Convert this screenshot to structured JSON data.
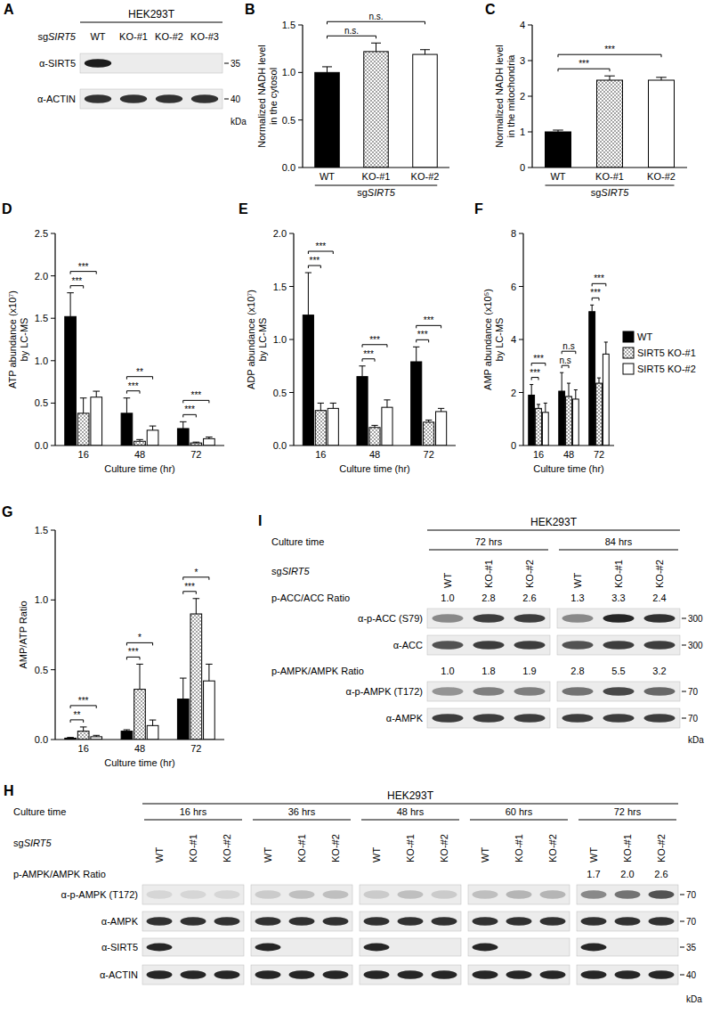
{
  "chart_data": [
    {
      "panel": "B",
      "type": "bar",
      "categories": [
        "WT",
        "KO-#1",
        "KO-#2"
      ],
      "values": [
        1.0,
        1.22,
        1.19
      ],
      "errors": [
        0.06,
        0.09,
        0.05
      ],
      "colors": [
        "#000000",
        "#ffffff",
        "#ffffff"
      ],
      "ylim": [
        0,
        1.5
      ],
      "yticks": [
        {
          "value": 0,
          "label": "0.0"
        },
        {
          "value": 0.5,
          "label": "0.5"
        },
        {
          "value": 1,
          "label": "1.0"
        },
        {
          "value": 1.5,
          "label": "1.5"
        }
      ],
      "ylabel": [
        "Normalized NADH level",
        "in the cytosol"
      ],
      "xlabel": "sgSIRT5",
      "annotations": [
        {
          "text": "n.s.",
          "pair": [
            0,
            1
          ]
        },
        {
          "text": "n.s.",
          "pair": [
            0,
            2
          ]
        }
      ]
    },
    {
      "panel": "C",
      "type": "bar",
      "categories": [
        "WT",
        "KO-#1",
        "KO-#2"
      ],
      "values": [
        1.0,
        2.45,
        2.45
      ],
      "errors": [
        0.05,
        0.12,
        0.08
      ],
      "colors": [
        "#000000",
        "#ffffff",
        "#ffffff"
      ],
      "ylim": [
        0,
        4
      ],
      "yticks": [
        0,
        1,
        2,
        3,
        4
      ],
      "ylabel": [
        "Normalized NADH level",
        "in the mitochondria"
      ],
      "xlabel": "sgSIRT5",
      "annotations": [
        {
          "text": "***",
          "pair": [
            0,
            1
          ]
        },
        {
          "text": "***",
          "pair": [
            0,
            2
          ]
        }
      ]
    },
    {
      "panel": "D",
      "type": "bar",
      "categories": [
        "16",
        "48",
        "72"
      ],
      "series": [
        {
          "name": "WT",
          "color": "#000000",
          "values": [
            1.52,
            0.38,
            0.2
          ],
          "errors": [
            0.28,
            0.18,
            0.08
          ]
        },
        {
          "name": "SIRT5 KO-#1",
          "color": "#ffffff",
          "values": [
            0.38,
            0.05,
            0.03
          ],
          "errors": [
            0.18,
            0.02,
            0.01
          ]
        },
        {
          "name": "SIRT5 KO-#2",
          "color": "#ffffff",
          "values": [
            0.57,
            0.18,
            0.08
          ],
          "errors": [
            0.07,
            0.05,
            0.02
          ]
        }
      ],
      "ylim": [
        0,
        2.5
      ],
      "yticks": [
        {
          "value": 0,
          "label": "0.0"
        },
        {
          "value": 0.5,
          "label": "0.5"
        },
        {
          "value": 1,
          "label": "1.0"
        },
        {
          "value": 1.5,
          "label": "1.5"
        },
        {
          "value": 2,
          "label": "2.0"
        },
        {
          "value": 2.5,
          "label": "2.5"
        }
      ],
      "ylabel": [
        "ATP abundance (x10⁷)",
        "by LC-MS"
      ],
      "xlabel": "Culture time (hr)",
      "annotations": [
        {
          "text": "***",
          "category": 0,
          "pair": [
            0,
            1
          ]
        },
        {
          "text": "***",
          "category": 0,
          "pair": [
            0,
            2
          ]
        },
        {
          "text": "***",
          "category": 1,
          "pair": [
            0,
            1
          ]
        },
        {
          "text": "**",
          "category": 1,
          "pair": [
            0,
            2
          ]
        },
        {
          "text": "***",
          "category": 2,
          "pair": [
            0,
            1
          ]
        },
        {
          "text": "***",
          "category": 2,
          "pair": [
            0,
            2
          ]
        }
      ]
    },
    {
      "panel": "E",
      "type": "bar",
      "categories": [
        "16",
        "48",
        "72"
      ],
      "series": [
        {
          "name": "WT",
          "color": "#000000",
          "values": [
            1.23,
            0.65,
            0.79
          ],
          "errors": [
            0.4,
            0.1,
            0.14
          ]
        },
        {
          "name": "SIRT5 KO-#1",
          "color": "#ffffff",
          "values": [
            0.33,
            0.17,
            0.22
          ],
          "errors": [
            0.07,
            0.02,
            0.02
          ]
        },
        {
          "name": "SIRT5 KO-#2",
          "color": "#ffffff",
          "values": [
            0.35,
            0.36,
            0.32
          ],
          "errors": [
            0.05,
            0.07,
            0.03
          ]
        }
      ],
      "ylim": [
        0,
        2
      ],
      "yticks": [
        {
          "value": 0,
          "label": "0.0"
        },
        {
          "value": 0.5,
          "label": "0.5"
        },
        {
          "value": 1,
          "label": "1.0"
        },
        {
          "value": 1.5,
          "label": "1.5"
        },
        {
          "value": 2,
          "label": "2.0"
        }
      ],
      "ylabel": [
        "ADP abundance (x10⁷)",
        "by LC-MS"
      ],
      "xlabel": "Culture time (hr)",
      "annotations": [
        {
          "text": "***",
          "category": 0,
          "pair": [
            0,
            1
          ]
        },
        {
          "text": "***",
          "category": 0,
          "pair": [
            0,
            2
          ]
        },
        {
          "text": "***",
          "category": 1,
          "pair": [
            0,
            1
          ]
        },
        {
          "text": "***",
          "category": 1,
          "pair": [
            0,
            2
          ]
        },
        {
          "text": "***",
          "category": 2,
          "pair": [
            0,
            1
          ]
        },
        {
          "text": "***",
          "category": 2,
          "pair": [
            0,
            2
          ]
        }
      ]
    },
    {
      "panel": "F",
      "type": "bar",
      "categories": [
        "16",
        "48",
        "72"
      ],
      "series": [
        {
          "name": "WT",
          "color": "#000000",
          "values": [
            1.9,
            2.05,
            5.05
          ],
          "errors": [
            0.4,
            0.7,
            0.25
          ]
        },
        {
          "name": "SIRT5 KO-#1",
          "color": "#ffffff",
          "values": [
            1.4,
            1.85,
            2.35
          ],
          "errors": [
            0.15,
            0.5,
            0.2
          ]
        },
        {
          "name": "SIRT5 KO-#2",
          "color": "#ffffff",
          "values": [
            1.25,
            1.75,
            3.45
          ],
          "errors": [
            0.35,
            0.35,
            0.45
          ]
        }
      ],
      "ylim": [
        0,
        8
      ],
      "yticks": [
        0,
        2,
        4,
        6,
        8
      ],
      "ylabel": [
        "AMP abundance (x10⁵)",
        "by LC-MS"
      ],
      "xlabel": "Culture time (hr)",
      "legend": "right",
      "annotations": [
        {
          "text": "***",
          "category": 0,
          "pair": [
            0,
            1
          ]
        },
        {
          "text": "***",
          "category": 0,
          "pair": [
            0,
            2
          ]
        },
        {
          "text": "n.s",
          "category": 1,
          "pair": [
            0,
            1
          ]
        },
        {
          "text": "n.s",
          "category": 1,
          "pair": [
            0,
            2
          ]
        },
        {
          "text": "***",
          "category": 2,
          "pair": [
            0,
            1
          ]
        },
        {
          "text": "***",
          "category": 2,
          "pair": [
            0,
            2
          ]
        }
      ]
    },
    {
      "panel": "G",
      "type": "bar",
      "categories": [
        "16",
        "48",
        "72"
      ],
      "series": [
        {
          "name": "WT",
          "color": "#000000",
          "values": [
            0.01,
            0.06,
            0.29
          ],
          "errors": [
            0.005,
            0.01,
            0.15
          ]
        },
        {
          "name": "SIRT5 KO-#1",
          "color": "#ffffff",
          "values": [
            0.06,
            0.36,
            0.9
          ],
          "errors": [
            0.03,
            0.18,
            0.11
          ]
        },
        {
          "name": "SIRT5 KO-#2",
          "color": "#ffffff",
          "values": [
            0.02,
            0.1,
            0.42
          ],
          "errors": [
            0.01,
            0.04,
            0.12
          ]
        }
      ],
      "ylim": [
        0,
        1.5
      ],
      "yticks": [
        {
          "value": 0,
          "label": "0.0"
        },
        {
          "value": 0.5,
          "label": "0.5"
        },
        {
          "value": 1,
          "label": "1.0"
        },
        {
          "value": 1.5,
          "label": "1.5"
        }
      ],
      "ylabel": [
        "AMP/ATP Ratio"
      ],
      "xlabel": "Culture time (hr)",
      "annotations": [
        {
          "text": "**",
          "category": 0,
          "pair": [
            0,
            1
          ]
        },
        {
          "text": "***",
          "category": 0,
          "pair": [
            0,
            2
          ]
        },
        {
          "text": "***",
          "category": 1,
          "pair": [
            0,
            1
          ]
        },
        {
          "text": "*",
          "category": 1,
          "pair": [
            0,
            2
          ]
        },
        {
          "text": "***",
          "category": 2,
          "pair": [
            0,
            1
          ]
        },
        {
          "text": "*",
          "category": 2,
          "pair": [
            0,
            2
          ]
        }
      ]
    }
  ],
  "blots": [
    {
      "panel": "A",
      "cell_line": "HEK293T",
      "group_label": "sgSIRT5",
      "lanes": [
        "WT",
        "KO-#1",
        "KO-#2",
        "KO-#3"
      ],
      "rows": [
        {
          "label": "α-SIRT5",
          "mw": "35",
          "bands": [
            0.95,
            0,
            0,
            0
          ]
        },
        {
          "label": "α-ACTIN",
          "mw": "40",
          "bands": [
            0.85,
            0.85,
            0.85,
            0.85
          ]
        }
      ],
      "unit": "kDa"
    },
    {
      "panel": "I",
      "cell_line": "HEK293T",
      "time_label": "Culture time",
      "times": [
        "72 hrs",
        "84 hrs"
      ],
      "group_label": "sgSIRT5",
      "lanes": [
        "WT",
        "KO-#1",
        "KO-#2",
        "WT",
        "KO-#1",
        "KO-#2"
      ],
      "rows": [
        {
          "ratio_label": "p-ACC/ACC Ratio",
          "ratios": [
            "1.0",
            "2.8",
            "2.6",
            "1.3",
            "3.3",
            "2.4"
          ],
          "label": "α-p-ACC (S79)",
          "mw": "300",
          "bands": [
            0.45,
            0.8,
            0.8,
            0.45,
            0.9,
            0.85
          ]
        },
        {
          "label": "α-ACC",
          "mw": "300",
          "bands": [
            0.7,
            0.8,
            0.8,
            0.7,
            0.8,
            0.8
          ]
        },
        {
          "ratio_label": "p-AMPK/AMPK Ratio",
          "ratios": [
            "1.0",
            "1.8",
            "1.9",
            "2.8",
            "5.5",
            "3.2"
          ],
          "label": "α-p-AMPK (T172)",
          "mw": "70",
          "bands": [
            0.4,
            0.5,
            0.5,
            0.55,
            0.75,
            0.6
          ]
        },
        {
          "label": "α-AMPK",
          "mw": "70",
          "bands": [
            0.8,
            0.8,
            0.8,
            0.8,
            0.8,
            0.8
          ]
        }
      ],
      "unit": "kDa"
    },
    {
      "panel": "H",
      "cell_line": "HEK293T",
      "time_label": "Culture time",
      "times": [
        "16 hrs",
        "36 hrs",
        "48 hrs",
        "60 hrs",
        "72 hrs"
      ],
      "group_label": "sgSIRT5",
      "lanes": [
        "WT",
        "KO-#1",
        "KO-#2",
        "WT",
        "KO-#1",
        "KO-#2",
        "WT",
        "KO-#1",
        "KO-#2",
        "WT",
        "KO-#1",
        "KO-#2",
        "WT",
        "KO-#1",
        "KO-#2"
      ],
      "rows": [
        {
          "ratio_label": "p-AMPK/AMPK Ratio",
          "ratios": [
            null,
            null,
            null,
            null,
            null,
            null,
            null,
            null,
            null,
            null,
            null,
            null,
            "1.7",
            "2.0",
            "2.6"
          ],
          "label": "α-p-AMPK (T172)",
          "mw": "70",
          "bands": [
            0.1,
            0.1,
            0.1,
            0.15,
            0.2,
            0.2,
            0.15,
            0.2,
            0.15,
            0.2,
            0.25,
            0.25,
            0.45,
            0.55,
            0.7
          ]
        },
        {
          "label": "α-AMPK",
          "mw": "70",
          "bands": [
            0.85,
            0.85,
            0.85,
            0.85,
            0.85,
            0.85,
            0.85,
            0.85,
            0.85,
            0.85,
            0.85,
            0.85,
            0.85,
            0.85,
            0.85
          ]
        },
        {
          "label": "α-SIRT5",
          "mw": "35",
          "bands": [
            0.9,
            0,
            0,
            0.9,
            0,
            0,
            0.9,
            0,
            0,
            0.9,
            0,
            0,
            0.9,
            0,
            0
          ]
        },
        {
          "label": "α-ACTIN",
          "mw": "40",
          "bands": [
            0.9,
            0.9,
            0.9,
            0.9,
            0.9,
            0.9,
            0.9,
            0.9,
            0.9,
            0.9,
            0.9,
            0.9,
            0.9,
            0.9,
            0.9
          ]
        }
      ],
      "unit": "kDa"
    }
  ]
}
